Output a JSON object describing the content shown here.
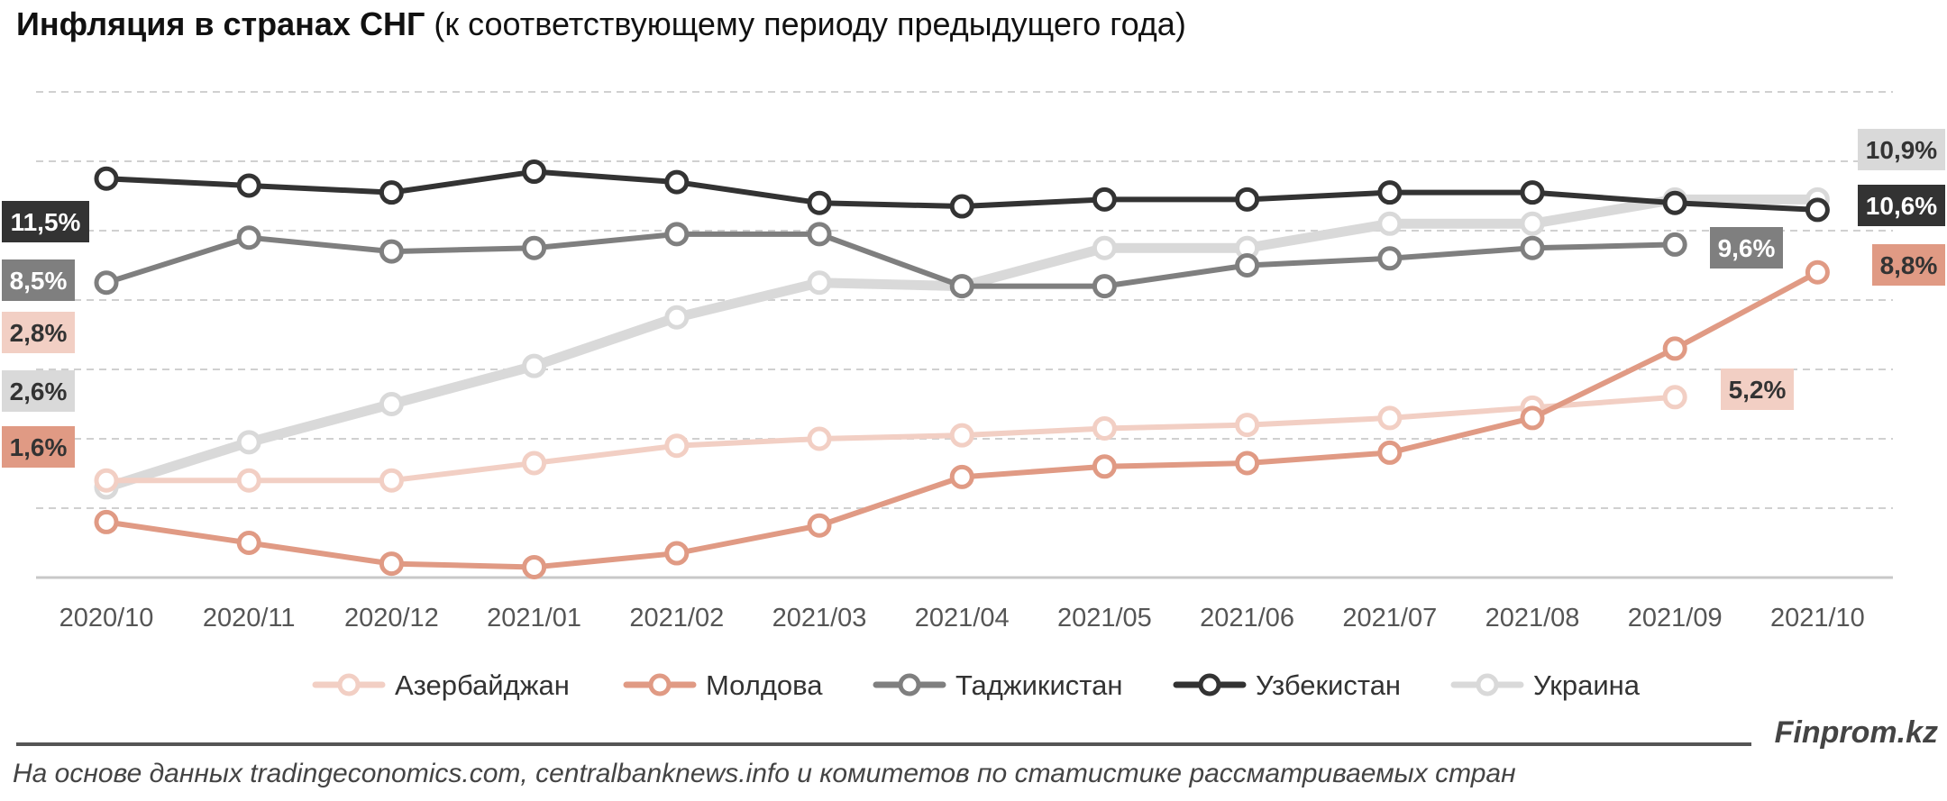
{
  "title_bold": "Инфляция в странах СНГ",
  "title_rest": "(к соответствующему периоду предыдущего года)",
  "brand": "Finprom.kz",
  "source_note": "На основе данных tradingeconomics.com, centralbanknews.info и комитетов по статистике рассматриваемых стран",
  "chart_data": {
    "type": "line",
    "categories": [
      "2020/10",
      "2020/11",
      "2020/12",
      "2021/01",
      "2021/02",
      "2021/03",
      "2021/04",
      "2021/05",
      "2021/06",
      "2021/07",
      "2021/08",
      "2021/09",
      "2021/10"
    ],
    "ylim": [
      0,
      14
    ],
    "grid": true,
    "legend_position": "bottom",
    "series": [
      {
        "name": "Азербайджан",
        "color": "#f2cfc4",
        "values": [
          2.8,
          2.8,
          2.8,
          3.3,
          3.8,
          4.0,
          4.1,
          4.3,
          4.4,
          4.6,
          4.9,
          5.2,
          null
        ],
        "start_label": "2,8%",
        "end_label": "5,2%"
      },
      {
        "name": "Молдова",
        "color": "#e09a84",
        "values": [
          1.6,
          1.0,
          0.4,
          0.3,
          0.7,
          1.5,
          2.9,
          3.2,
          3.3,
          3.6,
          4.6,
          6.6,
          8.8
        ],
        "start_label": "1,6%",
        "end_label": "8,8%"
      },
      {
        "name": "Таджикистан",
        "color": "#7f7f7f",
        "values": [
          8.5,
          9.8,
          9.4,
          9.5,
          9.9,
          9.9,
          8.4,
          8.4,
          9.0,
          9.2,
          9.5,
          9.6,
          null
        ],
        "start_label": "8,5%",
        "end_label": "9,6%"
      },
      {
        "name": "Узбекистан",
        "color": "#333333",
        "values": [
          11.5,
          11.3,
          11.1,
          11.7,
          11.4,
          10.8,
          10.7,
          10.9,
          10.9,
          11.1,
          11.1,
          10.8,
          10.6
        ],
        "start_label": "11,5%",
        "end_label": "10,6%"
      },
      {
        "name": "Украина",
        "color": "#d9d9d9",
        "values": [
          2.6,
          3.9,
          5.0,
          6.1,
          7.5,
          8.5,
          8.4,
          9.5,
          9.5,
          10.2,
          10.2,
          10.9,
          10.9
        ],
        "start_label": "2,6%",
        "end_label": "10,9%"
      }
    ]
  }
}
